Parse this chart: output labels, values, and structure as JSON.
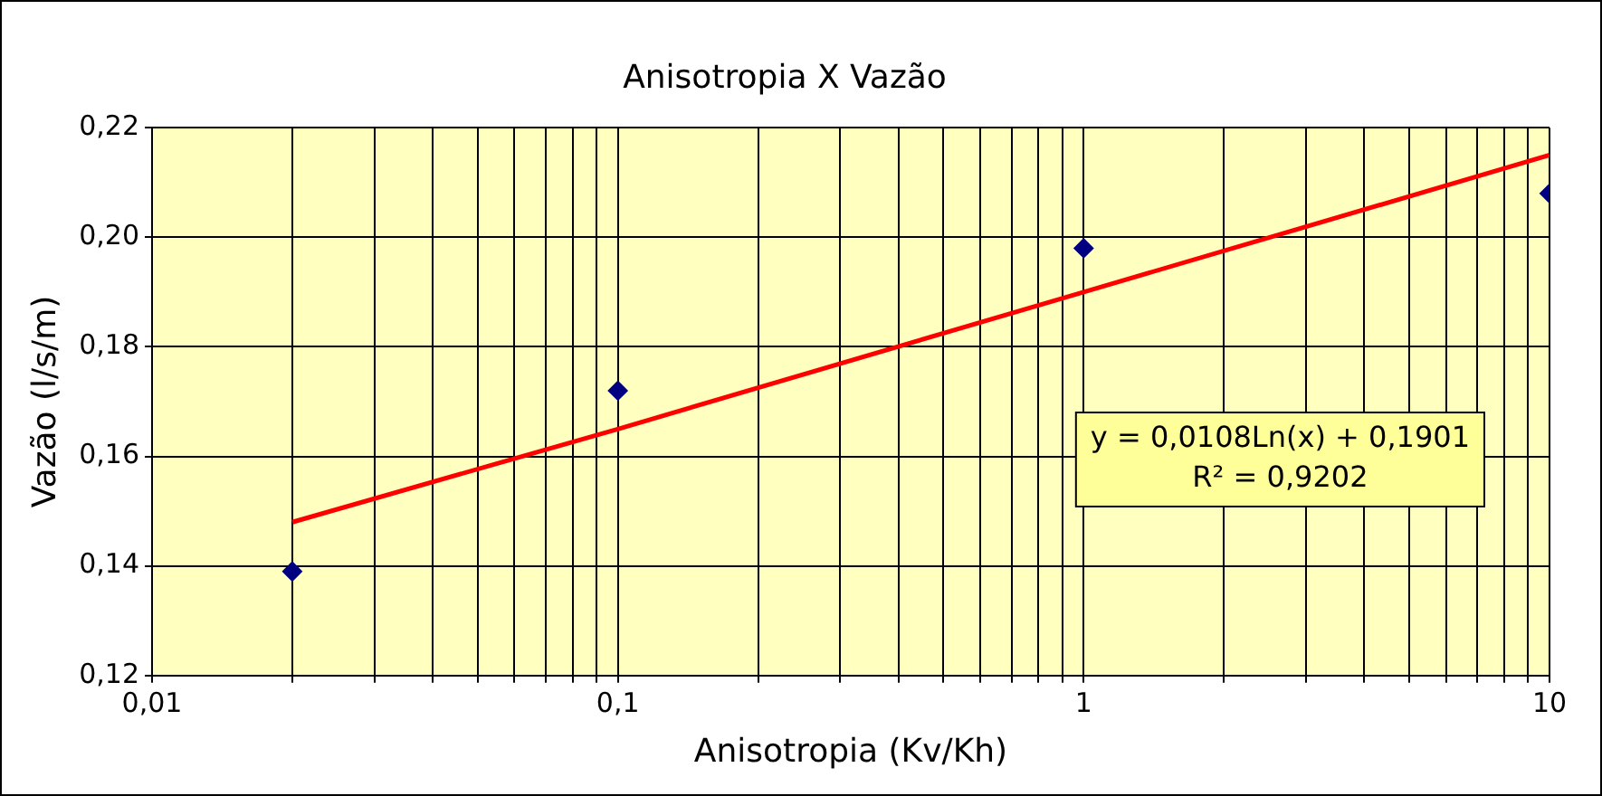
{
  "chart_data": {
    "type": "scatter",
    "title": "Anisotropia X Vazão",
    "xlabel": "Anisotropia (Kv/Kh)",
    "ylabel": "Vazão (l/s/m)",
    "log": "x",
    "grid": true,
    "legend": false,
    "marker": "diamond",
    "xlim": [
      0.01,
      10
    ],
    "ylim": [
      0.12,
      0.22
    ],
    "xticks": [
      {
        "value": 0.01,
        "label": "0,01"
      },
      {
        "value": 0.02,
        "label": null
      },
      {
        "value": 0.03,
        "label": null
      },
      {
        "value": 0.04,
        "label": null
      },
      {
        "value": 0.05,
        "label": null
      },
      {
        "value": 0.06,
        "label": null
      },
      {
        "value": 0.07,
        "label": null
      },
      {
        "value": 0.08,
        "label": null
      },
      {
        "value": 0.09,
        "label": null
      },
      {
        "value": 0.1,
        "label": "0,1"
      },
      {
        "value": 0.2,
        "label": null
      },
      {
        "value": 0.3,
        "label": null
      },
      {
        "value": 0.4,
        "label": null
      },
      {
        "value": 0.5,
        "label": null
      },
      {
        "value": 0.6,
        "label": null
      },
      {
        "value": 0.7,
        "label": null
      },
      {
        "value": 0.8,
        "label": null
      },
      {
        "value": 0.9,
        "label": null
      },
      {
        "value": 1,
        "label": "1"
      },
      {
        "value": 2,
        "label": null
      },
      {
        "value": 3,
        "label": null
      },
      {
        "value": 4,
        "label": null
      },
      {
        "value": 5,
        "label": null
      },
      {
        "value": 6,
        "label": null
      },
      {
        "value": 7,
        "label": null
      },
      {
        "value": 8,
        "label": null
      },
      {
        "value": 9,
        "label": null
      },
      {
        "value": 10,
        "label": "10"
      }
    ],
    "yticks": [
      {
        "value": 0.12,
        "label": "0,12"
      },
      {
        "value": 0.14,
        "label": "0,14"
      },
      {
        "value": 0.16,
        "label": "0,16"
      },
      {
        "value": 0.18,
        "label": "0,18"
      },
      {
        "value": 0.2,
        "label": "0,20"
      },
      {
        "value": 0.22,
        "label": "0,22"
      }
    ],
    "series": [
      {
        "color": "#000080",
        "x": [
          0.02,
          0.1,
          1,
          10
        ],
        "values": [
          0.139,
          0.172,
          0.198,
          0.208
        ]
      },
      {
        "type": "line",
        "color": "#ff0000",
        "marker": "none",
        "x": [
          0.02,
          0.1,
          1,
          10
        ],
        "values": [
          0.148,
          0.165,
          0.19,
          0.215
        ]
      }
    ],
    "annotations": [
      "y = 0,0108Ln(x) + 0,1901",
      "R² = 0,9202"
    ]
  }
}
